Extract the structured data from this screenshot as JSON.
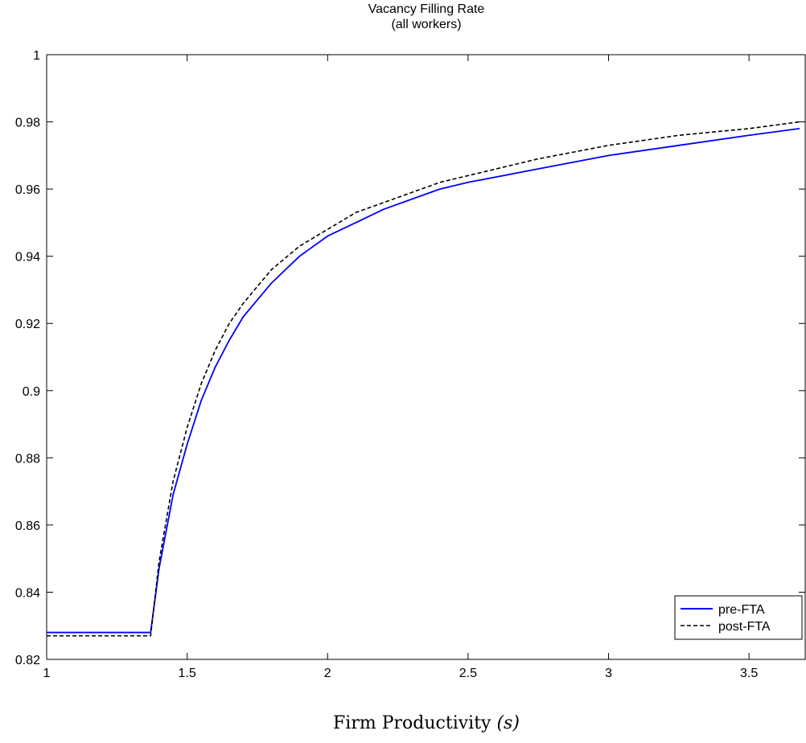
{
  "chart_data": {
    "type": "line",
    "title": "Vacancy Filling Rate",
    "subtitle": "(all workers)",
    "xlabel_main": "Firm Productivity ",
    "xlabel_var": "(s)",
    "ylabel": "",
    "xlim": [
      1,
      3.7
    ],
    "ylim": [
      0.82,
      1
    ],
    "xticks": [
      1,
      1.5,
      2,
      2.5,
      3,
      3.5
    ],
    "xtick_labels": [
      "1",
      "1.5",
      "2",
      "2.5",
      "3",
      "3.5"
    ],
    "yticks": [
      0.82,
      0.84,
      0.86,
      0.88,
      0.9,
      0.92,
      0.94,
      0.96,
      0.98,
      1
    ],
    "ytick_labels": [
      "0.82",
      "0.84",
      "0.86",
      "0.88",
      "0.9",
      "0.92",
      "0.94",
      "0.96",
      "0.98",
      "1"
    ],
    "grid": false,
    "legend_position": "bottom-right",
    "series": [
      {
        "name": "pre-FTA",
        "color": "#0000ff",
        "style": "solid",
        "x": [
          1.0,
          1.37,
          1.4,
          1.45,
          1.5,
          1.55,
          1.6,
          1.65,
          1.7,
          1.8,
          1.9,
          2.0,
          2.1,
          2.2,
          2.3,
          2.4,
          2.5,
          2.75,
          3.0,
          3.25,
          3.5,
          3.68
        ],
        "y": [
          0.828,
          0.828,
          0.847,
          0.869,
          0.884,
          0.897,
          0.907,
          0.915,
          0.922,
          0.932,
          0.94,
          0.946,
          0.95,
          0.954,
          0.957,
          0.96,
          0.962,
          0.966,
          0.97,
          0.973,
          0.976,
          0.978
        ]
      },
      {
        "name": "post-FTA",
        "color": "#000000",
        "style": "dashed",
        "x": [
          1.0,
          1.37,
          1.4,
          1.45,
          1.5,
          1.55,
          1.6,
          1.65,
          1.7,
          1.8,
          1.9,
          2.0,
          2.1,
          2.2,
          2.3,
          2.4,
          2.5,
          2.75,
          3.0,
          3.25,
          3.5,
          3.68
        ],
        "y": [
          0.827,
          0.827,
          0.849,
          0.873,
          0.889,
          0.902,
          0.912,
          0.92,
          0.926,
          0.936,
          0.943,
          0.948,
          0.953,
          0.956,
          0.959,
          0.962,
          0.964,
          0.969,
          0.973,
          0.976,
          0.978,
          0.98
        ]
      }
    ]
  }
}
